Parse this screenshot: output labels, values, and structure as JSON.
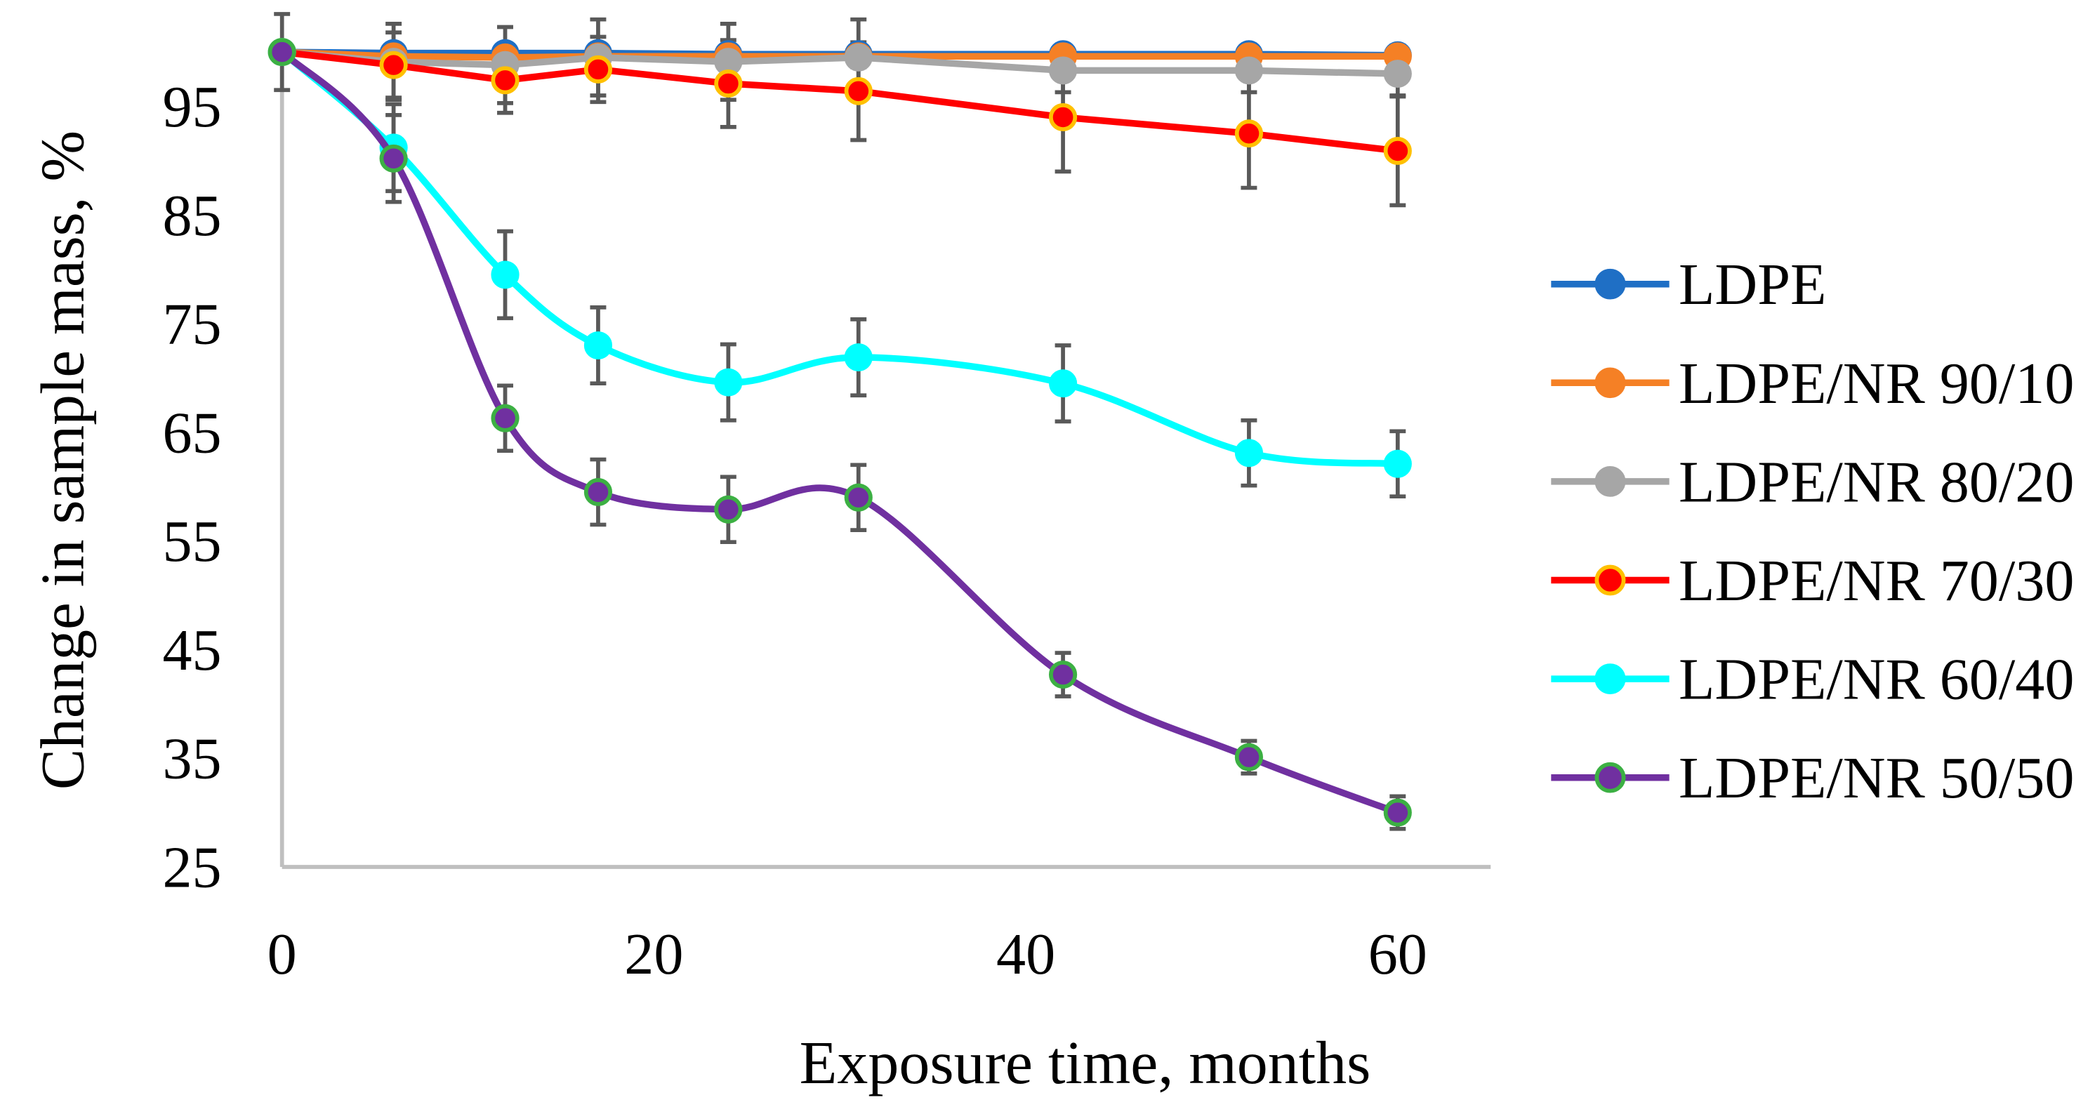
{
  "chart_data": {
    "type": "line",
    "title": "",
    "xlabel": "Exposure time, months",
    "ylabel": "Change in sample mass, %",
    "xlim": [
      0,
      65
    ],
    "ylim": [
      25,
      100
    ],
    "xticks": [
      0,
      20,
      40,
      60
    ],
    "yticks": [
      25,
      35,
      45,
      55,
      65,
      75,
      85,
      95
    ],
    "grid": false,
    "legend_position": "right",
    "x": [
      0,
      6,
      12,
      17,
      24,
      31,
      42,
      52,
      60
    ],
    "series": [
      {
        "name": "LDPE",
        "color": "#1f6fc5",
        "marker_edge": "#1f6fc5",
        "smooth": false,
        "values": [
          100,
          99.9,
          99.9,
          99.9,
          99.8,
          99.8,
          99.8,
          99.8,
          99.7
        ],
        "errors": [
          0,
          0.5,
          0.5,
          0.5,
          0.5,
          0.5,
          0.5,
          0.5,
          0.5
        ]
      },
      {
        "name": "LDPE/NR 90/10",
        "color": "#f58025",
        "marker_edge": "#f58025",
        "smooth": false,
        "values": [
          100,
          99.6,
          99.5,
          99.6,
          99.6,
          99.6,
          99.6,
          99.6,
          99.6
        ],
        "errors": [
          0,
          1,
          1,
          1,
          1,
          1,
          1,
          1,
          1
        ]
      },
      {
        "name": "LDPE/NR 80/20",
        "color": "#a6a6a6",
        "marker_edge": "#a6a6a6",
        "smooth": false,
        "values": [
          100,
          99.1,
          98.8,
          99.5,
          99.1,
          99.5,
          98.3,
          98.3,
          98.0
        ],
        "errors": [
          3.5,
          3.5,
          3.5,
          3.5,
          3.5,
          3.5,
          2,
          2,
          2
        ]
      },
      {
        "name": "LDPE/NR 70/30",
        "color": "#ff0000",
        "marker_edge": "#ffc000",
        "smooth": false,
        "values": [
          100,
          98.8,
          97.4,
          98.4,
          97.1,
          96.4,
          94.0,
          92.5,
          90.9
        ],
        "errors": [
          0,
          3,
          3,
          3,
          4,
          4.5,
          5,
          5,
          5
        ]
      },
      {
        "name": "LDPE/NR 60/40",
        "color": "#00ffff",
        "marker_edge": "#00ffff",
        "smooth": true,
        "values": [
          100,
          91.2,
          79.5,
          73.0,
          69.6,
          71.9,
          69.5,
          63.1,
          62.1
        ],
        "errors": [
          0,
          4,
          4,
          3.5,
          3.5,
          3.5,
          3.5,
          3,
          3
        ]
      },
      {
        "name": "LDPE/NR 50/50",
        "color": "#7030a0",
        "marker_edge": "#3cb043",
        "smooth": true,
        "values": [
          100,
          90.2,
          66.3,
          59.5,
          57.9,
          59.0,
          42.7,
          35.1,
          30.0
        ],
        "errors": [
          0,
          4,
          3,
          3,
          3,
          3,
          2,
          1.5,
          1.5
        ]
      }
    ]
  }
}
